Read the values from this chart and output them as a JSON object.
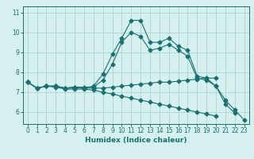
{
  "xlabel": "Humidex (Indice chaleur)",
  "bg_color": "#d6f0ef",
  "grid_color": "#b0d8d5",
  "line_color": "#1a7070",
  "xlim": [
    -0.5,
    23.5
  ],
  "ylim": [
    5.4,
    11.3
  ],
  "yticks": [
    6,
    7,
    8,
    9,
    10,
    11
  ],
  "xticks": [
    0,
    1,
    2,
    3,
    4,
    5,
    6,
    7,
    8,
    9,
    10,
    11,
    12,
    13,
    14,
    15,
    16,
    17,
    18,
    19,
    20,
    21,
    22,
    23
  ],
  "lines": [
    {
      "x": [
        0,
        1,
        2,
        3,
        4,
        5,
        6,
        7,
        8,
        9,
        10,
        11,
        12,
        13,
        14,
        15,
        16,
        17,
        18,
        19,
        20,
        21,
        22,
        23
      ],
      "y": [
        7.5,
        7.2,
        7.3,
        7.3,
        7.2,
        7.2,
        7.2,
        7.3,
        7.9,
        8.9,
        9.7,
        10.6,
        10.6,
        9.5,
        9.5,
        9.7,
        9.3,
        9.1,
        7.8,
        7.7,
        7.3,
        6.6,
        6.1,
        5.6
      ],
      "marker": "D",
      "markersize": 2.5
    },
    {
      "x": [
        0,
        1,
        2,
        3,
        4,
        5,
        6,
        7,
        8,
        9,
        10,
        11,
        12,
        13,
        14,
        15,
        16,
        17,
        18,
        19,
        20,
        21,
        22
      ],
      "y": [
        7.5,
        7.2,
        7.3,
        7.3,
        7.2,
        7.25,
        7.25,
        7.25,
        7.6,
        8.4,
        9.5,
        10.0,
        9.8,
        9.1,
        9.2,
        9.4,
        9.1,
        8.8,
        7.7,
        7.6,
        7.3,
        6.4,
        5.95
      ],
      "marker": "D",
      "markersize": 2.5
    },
    {
      "x": [
        0,
        1,
        2,
        3,
        4,
        5,
        6,
        7,
        8,
        9,
        10,
        11,
        12,
        13,
        14,
        15,
        16,
        17,
        18,
        19,
        20
      ],
      "y": [
        7.5,
        7.2,
        7.3,
        7.3,
        7.2,
        7.25,
        7.2,
        7.2,
        7.2,
        7.25,
        7.3,
        7.35,
        7.4,
        7.45,
        7.5,
        7.5,
        7.55,
        7.6,
        7.65,
        7.7,
        7.7
      ],
      "marker": "D",
      "markersize": 2.5
    },
    {
      "x": [
        0,
        1,
        2,
        3,
        4,
        5,
        6,
        7,
        8,
        9,
        10,
        11,
        12,
        13,
        14,
        15,
        16,
        17,
        18,
        19,
        20
      ],
      "y": [
        7.5,
        7.2,
        7.3,
        7.25,
        7.15,
        7.15,
        7.15,
        7.1,
        7.0,
        6.9,
        6.8,
        6.7,
        6.6,
        6.5,
        6.4,
        6.3,
        6.2,
        6.1,
        6.0,
        5.9,
        5.8
      ],
      "marker": "D",
      "markersize": 2.5
    }
  ]
}
